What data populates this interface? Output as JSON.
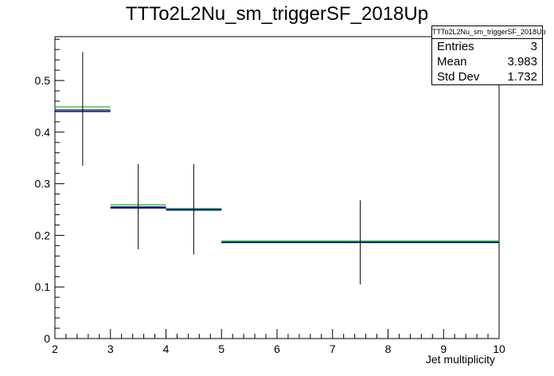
{
  "title": "TTTo2L2Nu_sm_triggerSF_2018Up",
  "stats": {
    "name": "TTTo2L2Nu_sm_triggerSF_2018Up",
    "rows": [
      {
        "label": "Entries",
        "value": "3"
      },
      {
        "label": "Mean",
        "value": "3.983"
      },
      {
        "label": "Std Dev",
        "value": "1.732"
      }
    ]
  },
  "chart_data": {
    "type": "histogram",
    "title": "TTTo2L2Nu_sm_triggerSF_2018Up",
    "xlabel": "Jet multiplicity",
    "ylabel": "",
    "xlim": [
      2,
      10
    ],
    "ylim": [
      0,
      0.585
    ],
    "xticks": [
      2,
      3,
      4,
      5,
      6,
      7,
      8,
      9,
      10
    ],
    "yticks": [
      0,
      0.1,
      0.2,
      0.3,
      0.4,
      0.5
    ],
    "ytick_labels": [
      "0",
      "0.1",
      "0.2",
      "0.3",
      "0.4",
      "0.5"
    ],
    "bins": [
      {
        "x0": 2,
        "x1": 3,
        "err_low": 0.335,
        "err_high": 0.555
      },
      {
        "x0": 3,
        "x1": 4,
        "err_low": 0.173,
        "err_high": 0.338
      },
      {
        "x0": 4,
        "x1": 5,
        "err_low": 0.163,
        "err_high": 0.338
      },
      {
        "x0": 5,
        "x1": 10,
        "err_low": 0.105,
        "err_high": 0.268
      }
    ],
    "series": [
      {
        "color": "#000000",
        "values": [
          0.44,
          0.253,
          0.249,
          0.186
        ]
      },
      {
        "color": "#0000cc",
        "values": [
          0.443,
          0.255,
          0.25,
          0.187
        ]
      },
      {
        "color": "#22bb22",
        "values": [
          0.449,
          0.259,
          0.252,
          0.189
        ]
      }
    ]
  }
}
